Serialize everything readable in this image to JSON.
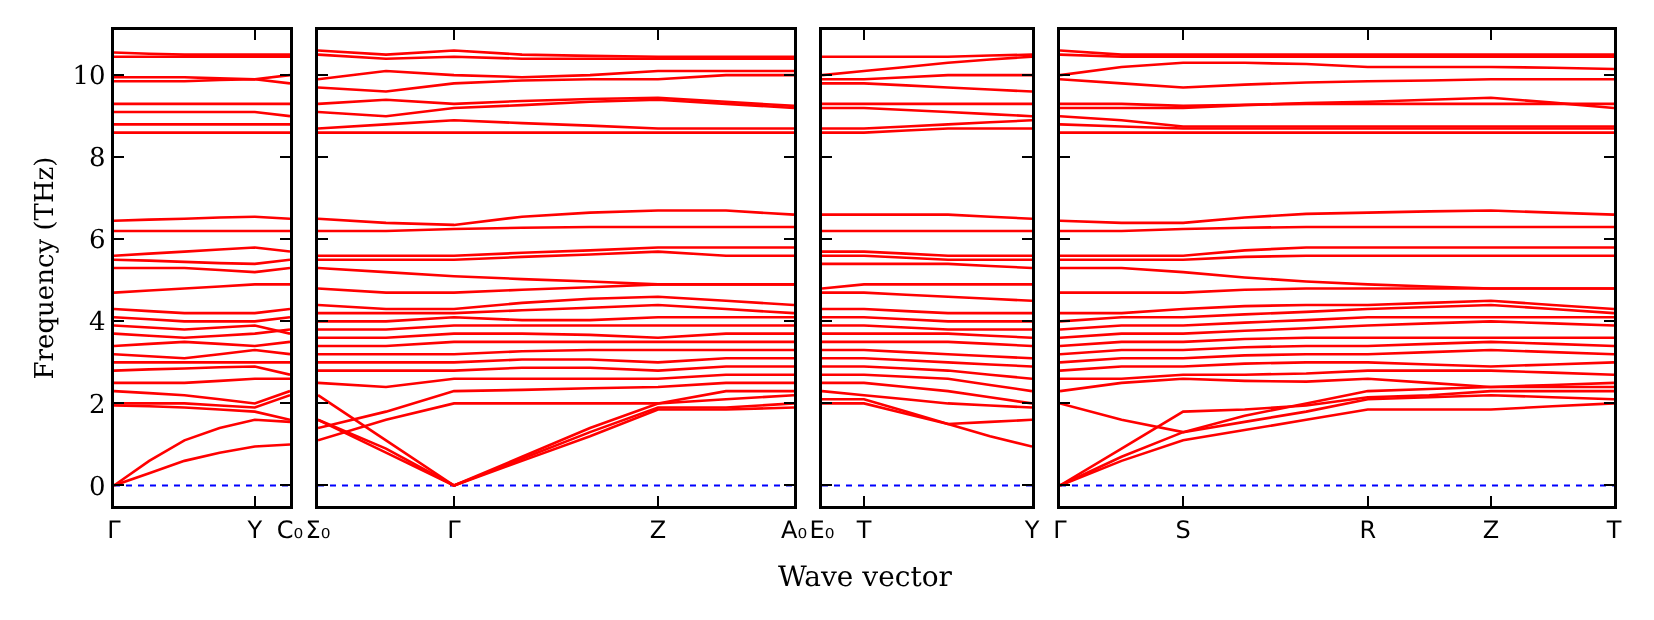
{
  "chart_data": [
    {
      "type": "line",
      "ylabel": "Frequency (THz)",
      "categories": [
        "Γ",
        null,
        null,
        null,
        "Y",
        "C₀"
      ],
      "ylim": [
        -0.5,
        11.1
      ],
      "yticks": [
        0,
        2,
        4,
        6,
        8,
        10
      ],
      "ref_lines": [
        {
          "axis": "y",
          "value": 0,
          "color": "#0000ff",
          "line_style": "dotted"
        }
      ],
      "series": [
        {
          "color": "#ff0000",
          "values": [
            0,
            0.3,
            0.6,
            0.8,
            0.95,
            1.0
          ]
        },
        {
          "color": "#ff0000",
          "values": [
            0,
            0.6,
            1.1,
            1.4,
            1.6,
            1.55
          ]
        },
        {
          "color": "#ff0000",
          "values": [
            1.95,
            1.93,
            1.9,
            1.85,
            1.8,
            1.6
          ]
        },
        {
          "color": "#ff0000",
          "values": [
            2.0,
            2.0,
            2.0,
            1.95,
            1.9,
            2.2
          ]
        },
        {
          "color": "#ff0000",
          "values": [
            2.3,
            2.25,
            2.2,
            2.1,
            2.0,
            2.3
          ]
        },
        {
          "color": "#ff0000",
          "values": [
            2.5,
            2.5,
            2.5,
            2.55,
            2.6,
            2.6
          ]
        },
        {
          "color": "#ff0000",
          "values": [
            2.8,
            2.83,
            2.85,
            2.88,
            2.9,
            2.7
          ]
        },
        {
          "color": "#ff0000",
          "values": [
            3.0,
            3.0,
            3.0,
            3.0,
            3.0,
            3.0
          ]
        },
        {
          "color": "#ff0000",
          "values": [
            3.2,
            3.15,
            3.1,
            3.2,
            3.3,
            3.2
          ]
        },
        {
          "color": "#ff0000",
          "values": [
            3.4,
            3.45,
            3.5,
            3.45,
            3.4,
            3.5
          ]
        },
        {
          "color": "#ff0000",
          "values": [
            3.7,
            3.65,
            3.6,
            3.65,
            3.7,
            3.8
          ]
        },
        {
          "color": "#ff0000",
          "values": [
            3.9,
            3.85,
            3.8,
            3.85,
            3.9,
            3.7
          ]
        },
        {
          "color": "#ff0000",
          "values": [
            4.1,
            4.05,
            4.0,
            4.0,
            4.0,
            4.1
          ]
        },
        {
          "color": "#ff0000",
          "values": [
            4.3,
            4.25,
            4.2,
            4.2,
            4.2,
            4.3
          ]
        },
        {
          "color": "#ff0000",
          "values": [
            4.7,
            4.75,
            4.8,
            4.85,
            4.9,
            4.9
          ]
        },
        {
          "color": "#ff0000",
          "values": [
            5.3,
            5.3,
            5.3,
            5.25,
            5.2,
            5.3
          ]
        },
        {
          "color": "#ff0000",
          "values": [
            5.5,
            5.48,
            5.45,
            5.42,
            5.4,
            5.5
          ]
        },
        {
          "color": "#ff0000",
          "values": [
            5.6,
            5.65,
            5.7,
            5.75,
            5.8,
            5.7
          ]
        },
        {
          "color": "#ff0000",
          "values": [
            6.2,
            6.2,
            6.2,
            6.2,
            6.2,
            6.2
          ]
        },
        {
          "color": "#ff0000",
          "values": [
            6.45,
            6.48,
            6.5,
            6.53,
            6.55,
            6.5
          ]
        },
        {
          "color": "#ff0000",
          "values": [
            8.6,
            8.6,
            8.6,
            8.6,
            8.6,
            8.6
          ]
        },
        {
          "color": "#ff0000",
          "values": [
            8.8,
            8.8,
            8.8,
            8.8,
            8.8,
            8.8
          ]
        },
        {
          "color": "#ff0000",
          "values": [
            9.1,
            9.1,
            9.1,
            9.1,
            9.1,
            9.0
          ]
        },
        {
          "color": "#ff0000",
          "values": [
            9.3,
            9.3,
            9.3,
            9.3,
            9.3,
            9.3
          ]
        },
        {
          "color": "#ff0000",
          "values": [
            9.85,
            9.85,
            9.85,
            9.88,
            9.9,
            9.8
          ]
        },
        {
          "color": "#ff0000",
          "values": [
            9.95,
            9.95,
            9.95,
            9.92,
            9.9,
            10.0
          ]
        },
        {
          "color": "#ff0000",
          "values": [
            10.45,
            10.45,
            10.45,
            10.45,
            10.45,
            10.45
          ]
        },
        {
          "color": "#ff0000",
          "values": [
            10.55,
            10.52,
            10.5,
            10.5,
            10.5,
            10.5
          ]
        }
      ]
    },
    {
      "type": "line",
      "xlabel": "Wave vector",
      "tick_labels": "x",
      "categories": [
        "Σ₀",
        null,
        "Γ",
        null,
        null,
        "Z",
        null,
        "A₀"
      ],
      "ylim": [
        -0.5,
        11.1
      ],
      "yticks": [
        0,
        2,
        4,
        6,
        8,
        10
      ],
      "ref_lines": [
        {
          "axis": "y",
          "value": 0,
          "color": "#0000ff",
          "line_style": "dotted"
        }
      ],
      "series": [
        {
          "color": "#ff0000",
          "values": [
            1.6,
            0.8,
            0,
            0.6,
            1.2,
            1.85,
            1.85,
            1.9
          ]
        },
        {
          "color": "#ff0000",
          "values": [
            1.6,
            0.9,
            0,
            0.65,
            1.3,
            1.9,
            1.9,
            2.0
          ]
        },
        {
          "color": "#ff0000",
          "values": [
            2.2,
            1.1,
            0,
            0.7,
            1.4,
            2.0,
            2.1,
            2.2
          ]
        },
        {
          "color": "#ff0000",
          "values": [
            1.1,
            1.6,
            2.0,
            2.0,
            2.0,
            2.0,
            2.3,
            2.3
          ]
        },
        {
          "color": "#ff0000",
          "values": [
            1.4,
            1.8,
            2.3,
            2.33,
            2.37,
            2.4,
            2.5,
            2.5
          ]
        },
        {
          "color": "#ff0000",
          "values": [
            2.5,
            2.4,
            2.6,
            2.6,
            2.6,
            2.6,
            2.7,
            2.7
          ]
        },
        {
          "color": "#ff0000",
          "values": [
            2.8,
            2.8,
            2.8,
            2.87,
            2.87,
            2.8,
            2.9,
            2.9
          ]
        },
        {
          "color": "#ff0000",
          "values": [
            3.0,
            3.0,
            3.0,
            3.07,
            3.07,
            3.0,
            3.1,
            3.1
          ]
        },
        {
          "color": "#ff0000",
          "values": [
            3.2,
            3.2,
            3.2,
            3.27,
            3.3,
            3.3,
            3.3,
            3.3
          ]
        },
        {
          "color": "#ff0000",
          "values": [
            3.4,
            3.4,
            3.5,
            3.5,
            3.5,
            3.5,
            3.5,
            3.5
          ]
        },
        {
          "color": "#ff0000",
          "values": [
            3.6,
            3.6,
            3.7,
            3.7,
            3.67,
            3.6,
            3.7,
            3.7
          ]
        },
        {
          "color": "#ff0000",
          "values": [
            3.8,
            3.8,
            3.9,
            3.9,
            3.9,
            3.9,
            3.9,
            3.9
          ]
        },
        {
          "color": "#ff0000",
          "values": [
            4.0,
            4.0,
            4.1,
            4.03,
            4.03,
            4.1,
            4.1,
            4.1
          ]
        },
        {
          "color": "#ff0000",
          "values": [
            4.2,
            4.2,
            4.2,
            4.27,
            4.33,
            4.4,
            4.3,
            4.2
          ]
        },
        {
          "color": "#ff0000",
          "values": [
            4.4,
            4.3,
            4.3,
            4.45,
            4.55,
            4.6,
            4.5,
            4.4
          ]
        },
        {
          "color": "#ff0000",
          "values": [
            4.8,
            4.7,
            4.7,
            4.77,
            4.83,
            4.9,
            4.9,
            4.9
          ]
        },
        {
          "color": "#ff0000",
          "values": [
            5.3,
            5.2,
            5.1,
            5.03,
            4.97,
            4.9,
            4.9,
            4.9
          ]
        },
        {
          "color": "#ff0000",
          "values": [
            5.5,
            5.5,
            5.5,
            5.57,
            5.63,
            5.7,
            5.6,
            5.6
          ]
        },
        {
          "color": "#ff0000",
          "values": [
            5.6,
            5.6,
            5.6,
            5.67,
            5.73,
            5.8,
            5.8,
            5.8
          ]
        },
        {
          "color": "#ff0000",
          "values": [
            6.2,
            6.2,
            6.25,
            6.28,
            6.3,
            6.3,
            6.3,
            6.3
          ]
        },
        {
          "color": "#ff0000",
          "values": [
            6.5,
            6.4,
            6.35,
            6.55,
            6.65,
            6.7,
            6.7,
            6.6
          ]
        },
        {
          "color": "#ff0000",
          "values": [
            8.6,
            8.6,
            8.6,
            8.6,
            8.6,
            8.6,
            8.6,
            8.6
          ]
        },
        {
          "color": "#ff0000",
          "values": [
            8.7,
            8.8,
            8.9,
            8.83,
            8.77,
            8.7,
            8.7,
            8.7
          ]
        },
        {
          "color": "#ff0000",
          "values": [
            9.1,
            9.0,
            9.2,
            9.27,
            9.35,
            9.4,
            9.3,
            9.2
          ]
        },
        {
          "color": "#ff0000",
          "values": [
            9.3,
            9.4,
            9.3,
            9.37,
            9.42,
            9.45,
            9.35,
            9.25
          ]
        },
        {
          "color": "#ff0000",
          "values": [
            9.7,
            9.6,
            9.8,
            9.87,
            9.9,
            9.9,
            10.0,
            10.0
          ]
        },
        {
          "color": "#ff0000",
          "values": [
            9.9,
            10.1,
            10.0,
            9.95,
            10.0,
            10.1,
            10.1,
            10.1
          ]
        },
        {
          "color": "#ff0000",
          "values": [
            10.5,
            10.4,
            10.45,
            10.4,
            10.4,
            10.4,
            10.4,
            10.4
          ]
        },
        {
          "color": "#ff0000",
          "values": [
            10.6,
            10.5,
            10.6,
            10.5,
            10.47,
            10.45,
            10.45,
            10.45
          ]
        }
      ]
    },
    {
      "type": "line",
      "tick_labels": "x",
      "categories": [
        "E₀",
        "T",
        null,
        null,
        null,
        "Y"
      ],
      "ylim": [
        -0.5,
        11.1
      ],
      "yticks": [
        0,
        2,
        4,
        6,
        8,
        10
      ],
      "ref_lines": [
        {
          "axis": "y",
          "value": 0,
          "color": "#0000ff",
          "line_style": "dotted"
        }
      ],
      "series": [
        {
          "color": "#ff0000",
          "values": [
            2.0,
            2.0,
            1.75,
            1.5,
            1.2,
            0.95
          ]
        },
        {
          "color": "#ff0000",
          "values": [
            2.1,
            2.1,
            1.8,
            1.5,
            1.55,
            1.6
          ]
        },
        {
          "color": "#ff0000",
          "values": [
            2.3,
            2.2,
            2.1,
            2.0,
            1.95,
            1.9
          ]
        },
        {
          "color": "#ff0000",
          "values": [
            2.5,
            2.5,
            2.4,
            2.3,
            2.15,
            2.0
          ]
        },
        {
          "color": "#ff0000",
          "values": [
            2.7,
            2.7,
            2.65,
            2.6,
            2.45,
            2.3
          ]
        },
        {
          "color": "#ff0000",
          "values": [
            2.9,
            2.9,
            2.85,
            2.8,
            2.7,
            2.6
          ]
        },
        {
          "color": "#ff0000",
          "values": [
            3.1,
            3.1,
            3.05,
            3.0,
            2.95,
            2.9
          ]
        },
        {
          "color": "#ff0000",
          "values": [
            3.3,
            3.3,
            3.25,
            3.2,
            3.15,
            3.1
          ]
        },
        {
          "color": "#ff0000",
          "values": [
            3.5,
            3.5,
            3.5,
            3.5,
            3.45,
            3.4
          ]
        },
        {
          "color": "#ff0000",
          "values": [
            3.7,
            3.7,
            3.7,
            3.7,
            3.65,
            3.6
          ]
        },
        {
          "color": "#ff0000",
          "values": [
            3.9,
            3.9,
            3.85,
            3.8,
            3.8,
            3.8
          ]
        },
        {
          "color": "#ff0000",
          "values": [
            4.1,
            4.1,
            4.05,
            4.0,
            4.0,
            4.0
          ]
        },
        {
          "color": "#ff0000",
          "values": [
            4.3,
            4.3,
            4.25,
            4.2,
            4.2,
            4.2
          ]
        },
        {
          "color": "#ff0000",
          "values": [
            4.7,
            4.7,
            4.65,
            4.6,
            4.55,
            4.5
          ]
        },
        {
          "color": "#ff0000",
          "values": [
            4.8,
            4.9,
            4.9,
            4.9,
            4.9,
            4.9
          ]
        },
        {
          "color": "#ff0000",
          "values": [
            5.4,
            5.4,
            5.4,
            5.4,
            5.35,
            5.3
          ]
        },
        {
          "color": "#ff0000",
          "values": [
            5.6,
            5.6,
            5.55,
            5.5,
            5.5,
            5.5
          ]
        },
        {
          "color": "#ff0000",
          "values": [
            5.7,
            5.7,
            5.65,
            5.6,
            5.6,
            5.6
          ]
        },
        {
          "color": "#ff0000",
          "values": [
            6.2,
            6.2,
            6.2,
            6.2,
            6.2,
            6.2
          ]
        },
        {
          "color": "#ff0000",
          "values": [
            6.6,
            6.6,
            6.6,
            6.6,
            6.55,
            6.5
          ]
        },
        {
          "color": "#ff0000",
          "values": [
            8.6,
            8.6,
            8.65,
            8.7,
            8.7,
            8.7
          ]
        },
        {
          "color": "#ff0000",
          "values": [
            8.7,
            8.7,
            8.75,
            8.8,
            8.85,
            8.9
          ]
        },
        {
          "color": "#ff0000",
          "values": [
            9.2,
            9.2,
            9.15,
            9.1,
            9.05,
            9.0
          ]
        },
        {
          "color": "#ff0000",
          "values": [
            9.3,
            9.3,
            9.3,
            9.3,
            9.3,
            9.3
          ]
        },
        {
          "color": "#ff0000",
          "values": [
            9.8,
            9.8,
            9.75,
            9.7,
            9.65,
            9.6
          ]
        },
        {
          "color": "#ff0000",
          "values": [
            9.9,
            9.9,
            9.95,
            10.0,
            10.0,
            10.0
          ]
        },
        {
          "color": "#ff0000",
          "values": [
            10.0,
            10.1,
            10.2,
            10.3,
            10.38,
            10.45
          ]
        },
        {
          "color": "#ff0000",
          "values": [
            10.45,
            10.45,
            10.45,
            10.45,
            10.48,
            10.5
          ]
        }
      ]
    },
    {
      "type": "line",
      "tick_labels": "x",
      "categories": [
        "Γ",
        null,
        "S",
        null,
        null,
        "R",
        null,
        "Z",
        null,
        "T"
      ],
      "ylim": [
        -0.5,
        11.1
      ],
      "yticks": [
        0,
        2,
        4,
        6,
        8,
        10
      ],
      "ref_lines": [
        {
          "axis": "y",
          "value": 0,
          "color": "#0000ff",
          "line_style": "dotted"
        }
      ],
      "series": [
        {
          "color": "#ff0000",
          "values": [
            0,
            0.6,
            1.1,
            1.35,
            1.6,
            1.85,
            1.85,
            1.85,
            1.93,
            2.0
          ]
        },
        {
          "color": "#ff0000",
          "values": [
            0,
            0.7,
            1.3,
            1.55,
            1.8,
            2.1,
            2.15,
            2.2,
            2.15,
            2.1
          ]
        },
        {
          "color": "#ff0000",
          "values": [
            0,
            0.9,
            1.8,
            1.85,
            1.95,
            2.15,
            2.2,
            2.3,
            2.3,
            2.3
          ]
        },
        {
          "color": "#ff0000",
          "values": [
            2.0,
            1.6,
            1.3,
            1.7,
            2.0,
            2.3,
            2.35,
            2.4,
            2.4,
            2.4
          ]
        },
        {
          "color": "#ff0000",
          "values": [
            2.3,
            2.5,
            2.6,
            2.55,
            2.53,
            2.6,
            2.5,
            2.4,
            2.45,
            2.5
          ]
        },
        {
          "color": "#ff0000",
          "values": [
            2.6,
            2.6,
            2.7,
            2.7,
            2.73,
            2.8,
            2.8,
            2.8,
            2.75,
            2.7
          ]
        },
        {
          "color": "#ff0000",
          "values": [
            2.8,
            2.9,
            2.9,
            2.97,
            3.0,
            3.0,
            2.95,
            2.9,
            2.95,
            3.0
          ]
        },
        {
          "color": "#ff0000",
          "values": [
            3.0,
            3.1,
            3.1,
            3.17,
            3.2,
            3.2,
            3.25,
            3.3,
            3.25,
            3.2
          ]
        },
        {
          "color": "#ff0000",
          "values": [
            3.2,
            3.3,
            3.3,
            3.37,
            3.4,
            3.4,
            3.45,
            3.5,
            3.45,
            3.4
          ]
        },
        {
          "color": "#ff0000",
          "values": [
            3.4,
            3.5,
            3.5,
            3.57,
            3.6,
            3.6,
            3.6,
            3.6,
            3.6,
            3.6
          ]
        },
        {
          "color": "#ff0000",
          "values": [
            3.6,
            3.7,
            3.7,
            3.77,
            3.83,
            3.9,
            3.95,
            4.0,
            3.95,
            3.9
          ]
        },
        {
          "color": "#ff0000",
          "values": [
            3.8,
            3.9,
            3.9,
            3.97,
            4.03,
            4.1,
            4.1,
            4.1,
            4.1,
            4.1
          ]
        },
        {
          "color": "#ff0000",
          "values": [
            4.0,
            4.1,
            4.1,
            4.17,
            4.23,
            4.3,
            4.35,
            4.4,
            4.3,
            4.2
          ]
        },
        {
          "color": "#ff0000",
          "values": [
            4.2,
            4.2,
            4.3,
            4.37,
            4.4,
            4.4,
            4.45,
            4.5,
            4.4,
            4.3
          ]
        },
        {
          "color": "#ff0000",
          "values": [
            4.7,
            4.7,
            4.7,
            4.77,
            4.8,
            4.8,
            4.8,
            4.8,
            4.8,
            4.8
          ]
        },
        {
          "color": "#ff0000",
          "values": [
            5.3,
            5.3,
            5.2,
            5.07,
            4.97,
            4.9,
            4.85,
            4.8,
            4.8,
            4.8
          ]
        },
        {
          "color": "#ff0000",
          "values": [
            5.5,
            5.5,
            5.5,
            5.57,
            5.6,
            5.6,
            5.6,
            5.6,
            5.6,
            5.6
          ]
        },
        {
          "color": "#ff0000",
          "values": [
            5.6,
            5.6,
            5.6,
            5.73,
            5.8,
            5.8,
            5.8,
            5.8,
            5.8,
            5.8
          ]
        },
        {
          "color": "#ff0000",
          "values": [
            6.2,
            6.2,
            6.25,
            6.28,
            6.3,
            6.3,
            6.3,
            6.3,
            6.3,
            6.3
          ]
        },
        {
          "color": "#ff0000",
          "values": [
            6.45,
            6.4,
            6.4,
            6.53,
            6.62,
            6.65,
            6.68,
            6.7,
            6.65,
            6.6
          ]
        },
        {
          "color": "#ff0000",
          "values": [
            8.6,
            8.6,
            8.6,
            8.6,
            8.6,
            8.6,
            8.6,
            8.6,
            8.6,
            8.6
          ]
        },
        {
          "color": "#ff0000",
          "values": [
            8.8,
            8.75,
            8.7,
            8.7,
            8.7,
            8.7,
            8.7,
            8.7,
            8.7,
            8.7
          ]
        },
        {
          "color": "#ff0000",
          "values": [
            9.0,
            8.9,
            8.75,
            8.75,
            8.75,
            8.75,
            8.75,
            8.75,
            8.75,
            8.75
          ]
        },
        {
          "color": "#ff0000",
          "values": [
            9.2,
            9.2,
            9.2,
            9.27,
            9.32,
            9.35,
            9.4,
            9.45,
            9.33,
            9.2
          ]
        },
        {
          "color": "#ff0000",
          "values": [
            9.3,
            9.3,
            9.25,
            9.28,
            9.3,
            9.3,
            9.3,
            9.3,
            9.3,
            9.3
          ]
        },
        {
          "color": "#ff0000",
          "values": [
            9.9,
            9.8,
            9.7,
            9.77,
            9.82,
            9.85,
            9.87,
            9.9,
            9.9,
            9.9
          ]
        },
        {
          "color": "#ff0000",
          "values": [
            10.0,
            10.2,
            10.3,
            10.3,
            10.27,
            10.2,
            10.2,
            10.2,
            10.18,
            10.15
          ]
        },
        {
          "color": "#ff0000",
          "values": [
            10.5,
            10.45,
            10.45,
            10.45,
            10.45,
            10.45,
            10.45,
            10.45,
            10.45,
            10.45
          ]
        },
        {
          "color": "#ff0000",
          "values": [
            10.6,
            10.5,
            10.5,
            10.5,
            10.5,
            10.5,
            10.5,
            10.5,
            10.5,
            10.5
          ]
        }
      ]
    }
  ]
}
